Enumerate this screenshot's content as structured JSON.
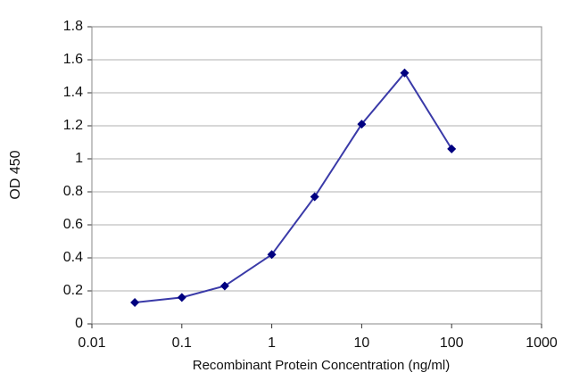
{
  "chart_data": {
    "type": "line",
    "x_label": "Recombinant Protein Concentration (ng/ml)",
    "y_label": "OD 450",
    "x": [
      0.03,
      0.1,
      0.3,
      1,
      3,
      10,
      30,
      100
    ],
    "series": [
      {
        "color": "#3a3aa8",
        "values": [
          0.13,
          0.16,
          0.23,
          0.42,
          0.77,
          1.21,
          1.52,
          1.06
        ]
      }
    ],
    "xscale": "log",
    "xlim": [
      0.01,
      1000
    ],
    "xticks": [
      0.01,
      0.1,
      1,
      10,
      100,
      1000
    ],
    "ylim": [
      0,
      1.8
    ],
    "yticks": [
      0,
      0.2,
      0.4,
      0.6,
      0.8,
      1,
      1.2,
      1.4,
      1.6,
      1.8
    ],
    "grid": true
  }
}
